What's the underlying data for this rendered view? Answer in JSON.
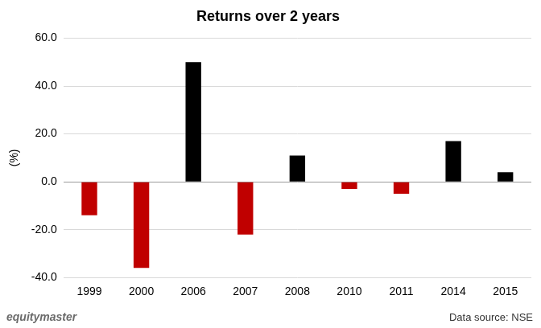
{
  "chart_data": {
    "type": "bar",
    "title": "Returns over 2 years",
    "y_label": "(%)",
    "categories": [
      "1999",
      "2000",
      "2006",
      "2007",
      "2008",
      "2010",
      "2011",
      "2014",
      "2015"
    ],
    "values": [
      -14,
      -36,
      50,
      -22,
      11,
      -3,
      -5,
      17,
      4
    ],
    "colors": [
      "#c00000",
      "#c00000",
      "#000000",
      "#c00000",
      "#000000",
      "#c00000",
      "#c00000",
      "#000000",
      "#000000"
    ],
    "ylim": [
      -40,
      60
    ],
    "yticks": [
      {
        "value": -40,
        "label": "-40.0"
      },
      {
        "value": -20,
        "label": "-20.0"
      },
      {
        "value": 0,
        "label": "0.0"
      },
      {
        "value": 20,
        "label": "20.0"
      },
      {
        "value": 40,
        "label": "40.0"
      },
      {
        "value": 60,
        "label": "60.0"
      }
    ],
    "grid": true,
    "logo": "equitymaster",
    "source": "Data source: NSE"
  }
}
